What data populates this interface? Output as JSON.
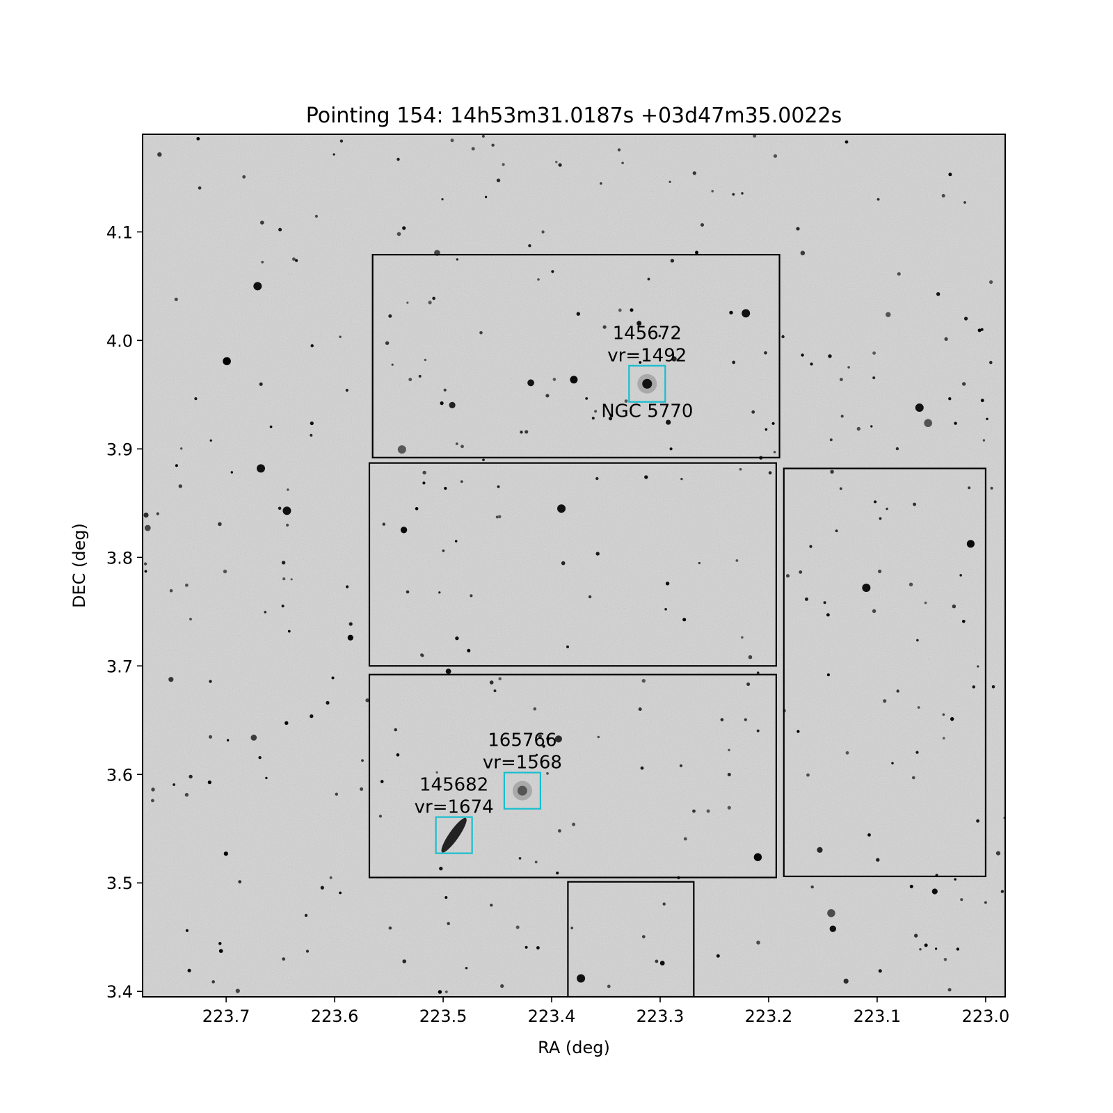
{
  "chart_data": {
    "type": "scatter",
    "title": "Pointing 154: 14h53m31.0187s +03d47m35.0022s",
    "xlabel": "RA (deg)",
    "ylabel": "DEC (deg)",
    "xlim": [
      223.777,
      222.982
    ],
    "ylim": [
      3.395,
      4.19
    ],
    "xticks": [
      223.7,
      223.6,
      223.5,
      223.4,
      223.3,
      223.2,
      223.1,
      223.0
    ],
    "xtick_labels": [
      "223.7",
      "223.6",
      "223.5",
      "223.4",
      "223.3",
      "223.2",
      "223.1",
      "223.0"
    ],
    "yticks": [
      3.4,
      3.5,
      3.6,
      3.7,
      3.8,
      3.9,
      4.0,
      4.1
    ],
    "ytick_labels": [
      "3.4",
      "3.5",
      "3.6",
      "3.7",
      "3.8",
      "3.9",
      "4.0",
      "4.1"
    ],
    "grid": false,
    "background": "grayscale sky image",
    "footprints": [
      {
        "ra": [
          223.565,
          223.19
        ],
        "dec": [
          3.892,
          4.079
        ]
      },
      {
        "ra": [
          223.568,
          223.193
        ],
        "dec": [
          3.7,
          3.887
        ]
      },
      {
        "ra": [
          223.568,
          223.193
        ],
        "dec": [
          3.505,
          3.692
        ]
      },
      {
        "ra": [
          223.186,
          223.0
        ],
        "dec": [
          3.506,
          3.882
        ]
      },
      {
        "ra": [
          223.385,
          223.269
        ],
        "dec": [
          3.395,
          3.501
        ]
      }
    ],
    "galaxies": [
      {
        "id": "145672",
        "vr_label": "vr=1492",
        "name": "NGC 5770",
        "ra": 223.312,
        "dec": 3.96
      },
      {
        "id": "165766",
        "vr_label": "vr=1568",
        "name": "",
        "ra": 223.427,
        "dec": 3.585
      },
      {
        "id": "145682",
        "vr_label": "vr=1674",
        "name": "",
        "ra": 223.49,
        "dec": 3.544
      }
    ],
    "colors": {
      "footprint": "#000000",
      "galaxy_box": "#17becf",
      "sky": "#d4d4d4"
    }
  }
}
